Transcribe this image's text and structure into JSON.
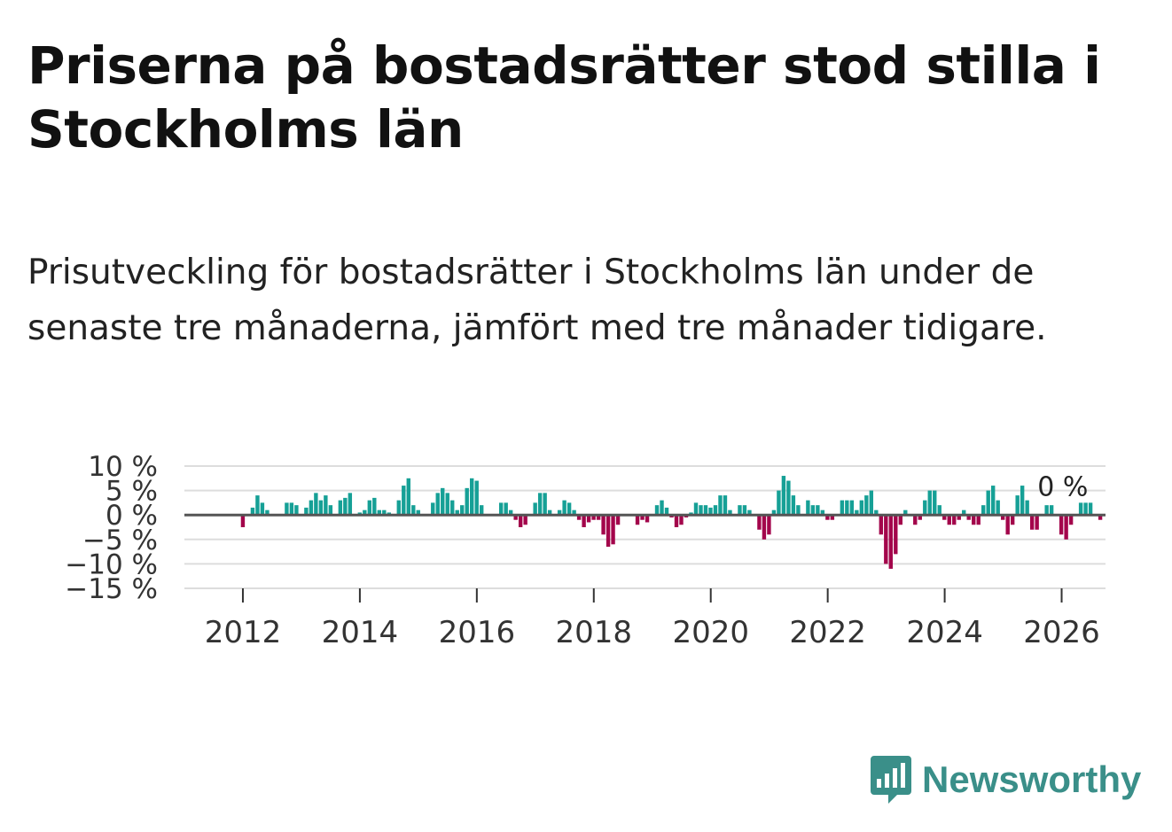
{
  "header": {
    "title": "Priserna på bostadsrätter stod stilla i Stockholms län",
    "subtitle": "Prisutveckling för bostadsrätter i Stockholms län under de senaste tre månaderna, jämfört med tre månader tidigare."
  },
  "logo": {
    "text": "Newsworthy"
  },
  "colors": {
    "positive": "#16a096",
    "negative": "#a3054b",
    "zero_line": "#555555",
    "grid": "#dddddd",
    "brand": "#3a8f89"
  },
  "chart_data": {
    "type": "bar",
    "title": "Priserna på bostadsrätter stod stilla i Stockholms län",
    "xlabel": "",
    "ylabel": "",
    "ylim": [
      -15,
      10
    ],
    "yticks": [
      10,
      5,
      0,
      -5,
      -10,
      -15
    ],
    "ytick_labels": [
      "10 %",
      "5 %",
      "0 %",
      "−5 %",
      "−10 %",
      "−15 %"
    ],
    "xticks": [
      2012,
      2014,
      2016,
      2018,
      2020,
      2022,
      2024,
      2026
    ],
    "x_start": 2011.0,
    "x_end": 2026.75,
    "annotation": {
      "label": "0 %",
      "x": 2025.92,
      "y": 2.5
    },
    "series": [
      {
        "name": "Prisutveckling",
        "start": 2011.0,
        "step": 0.0833,
        "values": [
          0,
          0,
          0,
          0,
          0,
          0,
          0,
          0,
          0,
          0,
          0,
          0,
          -2.5,
          0,
          1.5,
          4,
          2.5,
          1,
          0,
          0,
          0,
          2.5,
          2.5,
          2,
          0,
          1.5,
          3,
          4.5,
          3,
          4,
          2,
          0,
          3,
          3.5,
          4.5,
          0,
          0.5,
          1,
          3,
          3.5,
          1,
          1,
          0.5,
          0,
          3,
          6,
          7.5,
          2,
          1,
          0,
          0,
          2.5,
          4.5,
          5.5,
          4.5,
          3,
          1,
          2,
          5.5,
          7.5,
          7,
          2,
          0,
          0,
          0,
          2.5,
          2.5,
          1,
          -1,
          -2.5,
          -2,
          0,
          2.5,
          4.5,
          4.5,
          1,
          0,
          1,
          3,
          2.5,
          1,
          -1,
          -2.5,
          -1.5,
          -1,
          -1,
          -4,
          -6.5,
          -6,
          -2,
          0,
          0,
          0,
          -2,
          -1,
          -1.5,
          0,
          2,
          3,
          1.5,
          -0.5,
          -2.5,
          -2,
          -0.5,
          0.5,
          2.5,
          2,
          2,
          1.5,
          2,
          4,
          4,
          1,
          0,
          2,
          2,
          1,
          0,
          -3,
          -5,
          -4,
          1,
          5,
          8,
          7,
          4,
          2,
          0,
          3,
          2,
          2,
          1,
          -1,
          -1,
          0,
          3,
          3,
          3,
          1,
          3,
          4,
          5,
          1,
          -4,
          -10,
          -11,
          -8,
          -2,
          1,
          0,
          -2,
          -1,
          3,
          5,
          5,
          2,
          -1,
          -2,
          -2,
          -1,
          1,
          -1,
          -2,
          -2,
          2,
          5,
          6,
          3,
          -1,
          -4,
          -2,
          4,
          6,
          3,
          -3,
          -3,
          0,
          2,
          2,
          0,
          -4,
          -5,
          -2,
          0,
          2.5,
          2.5,
          2.5,
          0,
          -1,
          0
        ]
      }
    ]
  }
}
